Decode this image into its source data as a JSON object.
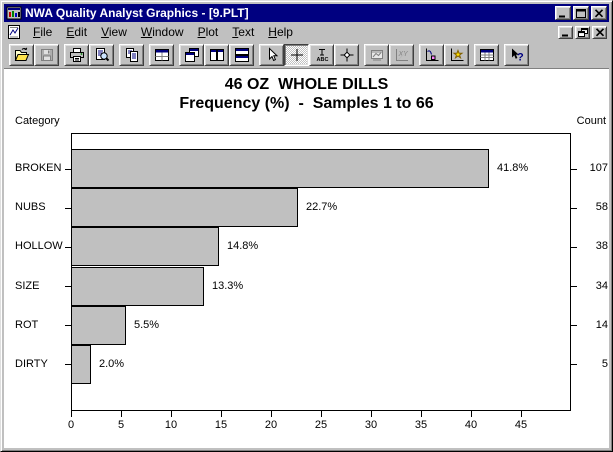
{
  "window": {
    "title": "NWA Quality Analyst Graphics - [9.PLT]",
    "controls": [
      "minimize",
      "maximize",
      "close"
    ],
    "mdi_controls": [
      "minimize",
      "restore",
      "close"
    ]
  },
  "menu": {
    "items": [
      "File",
      "Edit",
      "View",
      "Window",
      "Plot",
      "Text",
      "Help"
    ]
  },
  "toolbar": {
    "buttons": [
      {
        "icon": "open-file-icon",
        "group": 0
      },
      {
        "icon": "save-icon",
        "group": 0,
        "disabled": true
      },
      {
        "icon": "print-icon",
        "group": 1
      },
      {
        "icon": "print-preview-icon",
        "group": 1
      },
      {
        "icon": "copy-icon",
        "group": 2
      },
      {
        "icon": "new-window-icon",
        "group": 3
      },
      {
        "icon": "cascade-windows-icon",
        "group": 4
      },
      {
        "icon": "tile-vertical-icon",
        "group": 4
      },
      {
        "icon": "tile-horizontal-icon",
        "group": 4
      },
      {
        "icon": "pointer-icon",
        "group": 5
      },
      {
        "icon": "crosshair-icon",
        "group": 5,
        "pressed": true
      },
      {
        "icon": "text-annotation-icon",
        "group": 5
      },
      {
        "icon": "point-marker-icon",
        "group": 5
      },
      {
        "icon": "zoom-region-icon",
        "group": 6,
        "disabled": true
      },
      {
        "icon": "xy-plot-icon",
        "group": 6,
        "disabled": true
      },
      {
        "icon": "line-plot-icon",
        "group": 7
      },
      {
        "icon": "scatter-plot-icon",
        "group": 7
      },
      {
        "icon": "data-table-icon",
        "group": 8
      },
      {
        "icon": "help-pointer-icon",
        "group": 9
      }
    ]
  },
  "chart_data": {
    "type": "bar",
    "orientation": "horizontal",
    "title": "46 OZ  WHOLE DILLS",
    "subtitle": "Frequency (%)  -  Samples 1 to 66",
    "left_axis_label": "Category",
    "right_axis_label": "Count",
    "categories": [
      "BROKEN",
      "NUBS",
      "HOLLOW",
      "SIZE",
      "ROT",
      "DIRTY"
    ],
    "values_pct": [
      41.8,
      22.7,
      14.8,
      13.3,
      5.5,
      2.0
    ],
    "pct_labels": [
      "41.8%",
      "22.7%",
      "14.8%",
      "13.3%",
      "5.5%",
      "2.0%"
    ],
    "counts": [
      107,
      58,
      38,
      34,
      14,
      5
    ],
    "xlim": [
      0,
      50
    ],
    "x_ticks": [
      0,
      5,
      10,
      15,
      20,
      25,
      30,
      35,
      40,
      45
    ],
    "bar_color": "#c0c0c0",
    "grid": false,
    "legend": false
  },
  "colors": {
    "titlebar": "#000080",
    "titlebar_text": "#ffffff",
    "chrome": "#c0c0c0",
    "bar_fill": "#c0c0c0",
    "plot_border": "#000000"
  }
}
